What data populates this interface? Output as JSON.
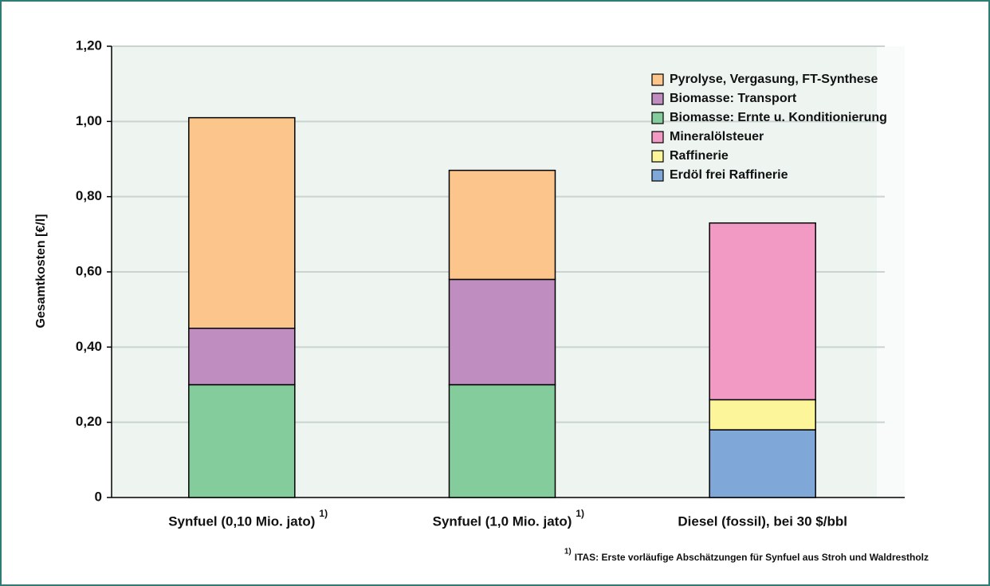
{
  "chart_data": {
    "type": "stacked-bar",
    "y_label": "Gesamtkosten [€/l]",
    "categories": [
      "Synfuel (0,10 Mio. jato)",
      "Synfuel (1,0 Mio. jato)",
      "Diesel (fossil), bei 30 $/bbl"
    ],
    "category_notes": [
      "1)",
      "1)",
      null
    ],
    "series": [
      {
        "name": "Pyrolyse, Vergasung, FT-Synthese",
        "color": "#fbc58b",
        "values": [
          0.56,
          0.29,
          null
        ]
      },
      {
        "name": "Biomasse: Transport",
        "color": "#bf8dbf",
        "values": [
          0.15,
          0.28,
          null
        ]
      },
      {
        "name": "Biomasse: Ernte u. Konditionierung",
        "color": "#84cc9b",
        "values": [
          0.3,
          0.3,
          null
        ]
      },
      {
        "name": "Mineralölsteuer",
        "color": "#f39ac4",
        "values": [
          null,
          null,
          0.47
        ]
      },
      {
        "name": "Raffinerie",
        "color": "#fdf59a",
        "values": [
          null,
          null,
          0.08
        ]
      },
      {
        "name": "Erdöl frei Raffinerie",
        "color": "#7fa8d8",
        "values": [
          null,
          null,
          0.18
        ]
      }
    ],
    "ylim": [
      0,
      1.2
    ],
    "yticks": [
      0,
      {
        "value": 0.2,
        "label": "0,20"
      },
      {
        "value": 0.4,
        "label": "0,40"
      },
      {
        "value": 0.6,
        "label": "0,60"
      },
      {
        "value": 0.8,
        "label": "0,80"
      },
      {
        "value": 1.0,
        "label": "1,00"
      },
      {
        "value": 1.2,
        "label": "1,20"
      }
    ],
    "grid": true,
    "footnote_mark": "1)",
    "footnote": "ITAS: Erste vorläufige Abschätzungen für Synfuel aus Stroh und Waldrestholz"
  }
}
